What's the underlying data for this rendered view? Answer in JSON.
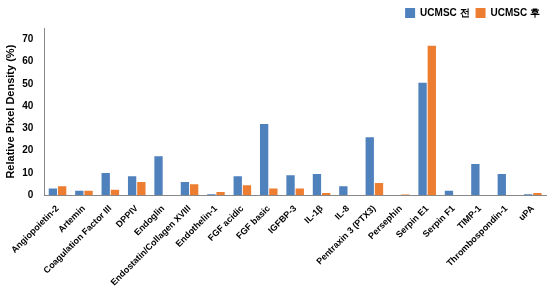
{
  "chart_data": {
    "type": "bar",
    "y_label": "Relative Pixel Density (%)",
    "categories": [
      "Angiopoietin-2",
      "Artemin",
      "Coagulation Factor III",
      "DPPIV",
      "Endoglin",
      "Endostatin/Collagen XVIII",
      "Endothelin-1",
      "FGF acidic",
      "FGF basic",
      "IGFBP-3",
      "IL-1β",
      "IL-8",
      "Pentraxin 3 (PTX3)",
      "Persephin",
      "Serpin E1",
      "Serpin F1",
      "TIMP-1",
      "Thrombospondin-1",
      "uPA"
    ],
    "series": [
      {
        "name": "UCMSC 전",
        "color": "#4F81BD",
        "values": [
          3,
          2,
          10,
          8.5,
          17.5,
          6,
          0.5,
          8.5,
          32,
          9,
          9.5,
          4,
          26,
          0,
          50.5,
          2,
          14,
          9.5,
          0.5
        ]
      },
      {
        "name": "UCMSC 후",
        "color": "#ED7D31",
        "values": [
          4,
          2,
          2.5,
          6,
          0,
          5,
          1.5,
          4.5,
          3,
          3,
          1,
          0,
          5.5,
          0.3,
          67,
          0,
          0,
          0,
          1
        ]
      }
    ],
    "ylim": [
      0,
      75
    ],
    "yticks": [
      0,
      10,
      20,
      30,
      40,
      50,
      60,
      70
    ],
    "grid": false,
    "legend": "top-right"
  }
}
